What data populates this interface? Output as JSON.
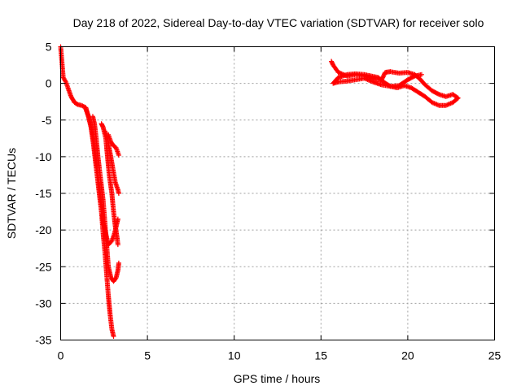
{
  "chart_data": {
    "type": "scatter",
    "title": "Day 218 of 2022, Sidereal Day-to-day VTEC variation (SDTVAR) for receiver solo",
    "xlabel": "GPS time / hours",
    "ylabel": "SDTVAR / TECUs",
    "xlim": [
      0,
      25
    ],
    "ylim": [
      -35,
      5
    ],
    "xticks": [
      0,
      5,
      10,
      15,
      20,
      25
    ],
    "yticks": [
      5,
      0,
      -5,
      -10,
      -15,
      -20,
      -25,
      -30,
      -35
    ],
    "grid": true,
    "marker": "+",
    "color": "#ff0000",
    "series": [
      {
        "name": "SDTVAR",
        "tracks": [
          [
            [
              0.0,
              5.0
            ],
            [
              0.15,
              0.8
            ],
            [
              0.3,
              0.2
            ],
            [
              0.45,
              -0.8
            ],
            [
              0.6,
              -1.8
            ],
            [
              0.8,
              -2.6
            ],
            [
              1.0,
              -2.9
            ],
            [
              1.2,
              -3.0
            ],
            [
              1.45,
              -3.3
            ],
            [
              1.6,
              -4.5
            ],
            [
              1.75,
              -6.0
            ],
            [
              1.9,
              -8.5
            ],
            [
              2.05,
              -11.5
            ],
            [
              2.2,
              -14.5
            ],
            [
              2.35,
              -17.5
            ],
            [
              2.45,
              -20.5
            ],
            [
              2.55,
              -23.0
            ],
            [
              2.65,
              -26.0
            ],
            [
              2.75,
              -29.0
            ],
            [
              2.85,
              -31.5
            ],
            [
              2.95,
              -33.5
            ],
            [
              3.05,
              -34.5
            ]
          ],
          [
            [
              1.45,
              -3.5
            ],
            [
              1.6,
              -4.5
            ],
            [
              1.75,
              -5.8
            ],
            [
              1.9,
              -8.0
            ],
            [
              2.05,
              -10.5
            ],
            [
              2.2,
              -13.5
            ],
            [
              2.35,
              -16.5
            ],
            [
              2.45,
              -19.0
            ],
            [
              2.6,
              -20.5
            ],
            [
              2.75,
              -22.0
            ],
            [
              2.95,
              -21.5
            ],
            [
              3.1,
              -20.5
            ],
            [
              3.2,
              -19.5
            ],
            [
              3.3,
              -18.5
            ]
          ],
          [
            [
              1.85,
              -4.5
            ],
            [
              1.95,
              -5.5
            ],
            [
              2.05,
              -7.5
            ],
            [
              2.15,
              -10.0
            ],
            [
              2.3,
              -13.0
            ],
            [
              2.45,
              -16.0
            ],
            [
              2.55,
              -19.0
            ],
            [
              2.65,
              -22.0
            ],
            [
              2.75,
              -25.0
            ],
            [
              2.9,
              -26.5
            ],
            [
              3.05,
              -27.0
            ],
            [
              3.2,
              -26.5
            ],
            [
              3.3,
              -25.5
            ],
            [
              3.35,
              -24.5
            ]
          ],
          [
            [
              2.35,
              -5.5
            ],
            [
              2.45,
              -6.0
            ],
            [
              2.6,
              -7.5
            ],
            [
              2.7,
              -10.0
            ],
            [
              2.8,
              -12.5
            ],
            [
              2.95,
              -15.0
            ],
            [
              3.05,
              -17.5
            ],
            [
              3.15,
              -19.5
            ],
            [
              3.25,
              -21.0
            ],
            [
              3.3,
              -22.0
            ]
          ],
          [
            [
              2.55,
              -6.5
            ],
            [
              2.7,
              -7.5
            ],
            [
              2.85,
              -9.5
            ],
            [
              3.0,
              -11.5
            ],
            [
              3.15,
              -13.5
            ],
            [
              3.3,
              -14.5
            ],
            [
              3.35,
              -15.0
            ]
          ],
          [
            [
              2.75,
              -7.0
            ],
            [
              2.9,
              -8.0
            ],
            [
              3.05,
              -8.5
            ],
            [
              3.2,
              -8.8
            ],
            [
              3.35,
              -9.8
            ]
          ],
          [
            [
              15.6,
              3.0
            ],
            [
              15.7,
              2.5
            ],
            [
              16.0,
              1.5
            ],
            [
              16.5,
              1.0
            ],
            [
              17.0,
              1.2
            ],
            [
              17.5,
              1.0
            ],
            [
              18.0,
              0.6
            ],
            [
              18.5,
              0.5
            ],
            [
              18.7,
              1.5
            ],
            [
              19.0,
              1.6
            ],
            [
              19.5,
              1.4
            ],
            [
              20.0,
              1.5
            ],
            [
              20.4,
              1.2
            ],
            [
              20.7,
              0.6
            ],
            [
              21.0,
              -0.2
            ],
            [
              21.4,
              -1.0
            ],
            [
              21.8,
              -1.5
            ],
            [
              22.2,
              -1.8
            ],
            [
              22.6,
              -1.5
            ],
            [
              22.9,
              -2.0
            ],
            [
              22.6,
              -2.6
            ],
            [
              22.2,
              -3.0
            ],
            [
              21.8,
              -3.0
            ],
            [
              21.4,
              -2.6
            ],
            [
              21.0,
              -1.8
            ],
            [
              20.6,
              -1.2
            ],
            [
              20.2,
              -0.6
            ],
            [
              19.8,
              -0.3
            ],
            [
              19.4,
              -0.6
            ],
            [
              19.0,
              -0.4
            ],
            [
              18.6,
              0.2
            ],
            [
              18.3,
              0.8
            ],
            [
              17.9,
              1.0
            ],
            [
              17.5,
              1.2
            ],
            [
              17.0,
              1.3
            ],
            [
              16.5,
              1.2
            ],
            [
              16.0,
              0.8
            ],
            [
              15.7,
              0.0
            ],
            [
              16.0,
              0.2
            ],
            [
              16.5,
              0.3
            ],
            [
              17.0,
              0.5
            ],
            [
              17.5,
              0.7
            ],
            [
              18.0,
              0.2
            ],
            [
              18.5,
              -0.2
            ],
            [
              19.0,
              -0.4
            ],
            [
              19.5,
              -0.3
            ],
            [
              20.0,
              0.5
            ],
            [
              20.4,
              1.0
            ],
            [
              20.8,
              1.2
            ]
          ]
        ]
      }
    ]
  }
}
